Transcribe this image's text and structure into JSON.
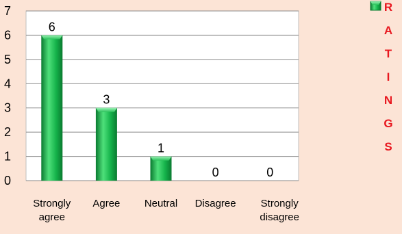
{
  "chart_data": {
    "type": "bar",
    "categories": [
      "Strongly agree",
      "Agree",
      "Neutral",
      "Disagree",
      "Strongly disagree"
    ],
    "category_lines": [
      [
        "Strongly",
        "agree"
      ],
      [
        "Agree"
      ],
      [
        "Neutral"
      ],
      [
        "Disagree"
      ],
      [
        "Strongly",
        "disagree"
      ]
    ],
    "series": [
      {
        "name": "RATINGS",
        "values": [
          6,
          3,
          1,
          0,
          0
        ]
      }
    ],
    "ylim": [
      0,
      7
    ],
    "yticks": [
      "0",
      "1",
      "2",
      "3",
      "4",
      "5",
      "6",
      "7"
    ],
    "title": "",
    "xlabel": "",
    "ylabel": "",
    "grid": true,
    "legend_position": "top-right",
    "legend_label_vertical": [
      "R",
      "A",
      "T",
      "I",
      "N",
      "G",
      "S"
    ],
    "colors": {
      "background": "#fce4d6",
      "plot_background": "#ffffff",
      "bar_light": "#4ee07a",
      "bar_mid": "#14b24a",
      "bar_dark": "#0a7a30",
      "legend_text": "#e8171f",
      "gridline": "#8a8a8a"
    }
  }
}
